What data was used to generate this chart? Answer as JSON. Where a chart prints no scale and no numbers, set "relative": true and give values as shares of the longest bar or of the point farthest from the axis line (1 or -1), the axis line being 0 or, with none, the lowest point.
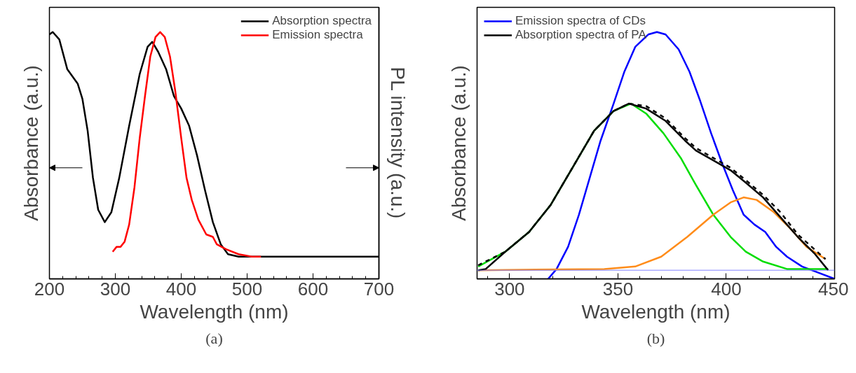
{
  "chart_data": [
    {
      "type": "line",
      "xlabel": "Wavelength (nm)",
      "ylabel": "Absorbance (a.u.)",
      "y2label": "PL intensity (a.u.)",
      "annotations": [
        "(a)"
      ],
      "xlim": [
        200,
        700
      ],
      "xticks": [
        200,
        300,
        400,
        500,
        600,
        700
      ],
      "relative": true,
      "tick_labels": "x",
      "legend": "top right",
      "grid": false,
      "series": [
        {
          "name": "Absorption spectra",
          "color": "#000000",
          "x": [
            200,
            205,
            215,
            227,
            235,
            243,
            250,
            258,
            266,
            274,
            284,
            294,
            306,
            321,
            337,
            349,
            356,
            365,
            377,
            389,
            400,
            412,
            424,
            436,
            448,
            460,
            471,
            487,
            527,
            700
          ],
          "values": [
            0.99,
            1.0,
            0.97,
            0.85,
            0.82,
            0.79,
            0.73,
            0.6,
            0.41,
            0.28,
            0.23,
            0.27,
            0.41,
            0.62,
            0.83,
            0.94,
            0.96,
            0.92,
            0.85,
            0.74,
            0.69,
            0.62,
            0.5,
            0.36,
            0.23,
            0.14,
            0.1,
            0.09,
            0.09,
            0.09
          ]
        },
        {
          "name": "Emission spectra",
          "color": "#ff0000",
          "x": [
            296,
            302,
            308,
            314,
            321,
            329,
            337,
            345,
            353,
            361,
            368,
            375,
            383,
            391,
            400,
            408,
            416,
            426,
            438,
            448,
            454,
            468,
            487,
            507,
            521
          ],
          "values": [
            0.11,
            0.13,
            0.13,
            0.15,
            0.22,
            0.37,
            0.57,
            0.74,
            0.9,
            0.98,
            1.0,
            0.98,
            0.9,
            0.76,
            0.57,
            0.41,
            0.32,
            0.24,
            0.18,
            0.17,
            0.14,
            0.12,
            0.1,
            0.09,
            0.09
          ]
        }
      ]
    },
    {
      "type": "line",
      "xlabel": "Wavelength (nm)",
      "ylabel": "Absorbance (a.u.)",
      "annotations": [
        "(b)"
      ],
      "xlim": [
        285,
        450
      ],
      "xticks": [
        300,
        350,
        400,
        450
      ],
      "relative": true,
      "tick_labels": "x",
      "legend": "top left",
      "grid": false,
      "ref_lines": [
        {
          "axis": "y",
          "value": 0.035,
          "color": "#8080ff"
        }
      ],
      "series": [
        {
          "name": "Emission spectra of CDs",
          "color": "#0000ff",
          "x": [
            317.8,
            321.7,
            327,
            332,
            337,
            342,
            348,
            353,
            358,
            364,
            368,
            372,
            378,
            383,
            388,
            393,
            398,
            403,
            408,
            413,
            418,
            423,
            428,
            435,
            441,
            450
          ],
          "values": [
            0,
            0.04,
            0.13,
            0.26,
            0.41,
            0.56,
            0.71,
            0.84,
            0.94,
            0.99,
            1.0,
            0.99,
            0.93,
            0.84,
            0.72,
            0.59,
            0.47,
            0.36,
            0.26,
            0.22,
            0.19,
            0.13,
            0.09,
            0.05,
            0.03,
            0
          ]
        },
        {
          "color": "#00dd00",
          "x": [
            285.5,
            298,
            309,
            319,
            329,
            339,
            348,
            356,
            363,
            371,
            379,
            386,
            394,
            402,
            409,
            417,
            428,
            447
          ],
          "values": [
            0.05,
            0.11,
            0.19,
            0.3,
            0.45,
            0.6,
            0.68,
            0.71,
            0.67,
            0.59,
            0.49,
            0.38,
            0.26,
            0.17,
            0.11,
            0.07,
            0.04,
            0.04
          ]
        },
        {
          "color": "#ff8c1a",
          "x": [
            285.5,
            343.7,
            358,
            370,
            382,
            394,
            402,
            408,
            414,
            422,
            430,
            437,
            445.8
          ],
          "values": [
            0.035,
            0.04,
            0.05,
            0.09,
            0.17,
            0.26,
            0.31,
            0.33,
            0.32,
            0.27,
            0.2,
            0.13,
            0.08
          ]
        },
        {
          "color": "#000000",
          "line_style": "dashed",
          "x": [
            285.5,
            298,
            309,
            319,
            329,
            339,
            348,
            355,
            363,
            372,
            381,
            386,
            394,
            402,
            409,
            417,
            425,
            433,
            445.8
          ],
          "values": [
            0.055,
            0.11,
            0.19,
            0.3,
            0.45,
            0.6,
            0.68,
            0.71,
            0.7,
            0.65,
            0.57,
            0.53,
            0.49,
            0.45,
            0.4,
            0.34,
            0.27,
            0.18,
            0.08
          ]
        },
        {
          "name": "Absorption spectra of PA",
          "color": "#000000",
          "x": [
            285.5,
            289,
            298,
            309,
            319,
            329,
            339,
            348,
            355,
            363,
            372,
            381,
            386,
            394,
            402,
            409,
            417,
            425,
            433,
            441,
            447
          ],
          "values": [
            0.035,
            0.04,
            0.11,
            0.19,
            0.3,
            0.45,
            0.6,
            0.68,
            0.71,
            0.69,
            0.64,
            0.56,
            0.52,
            0.48,
            0.44,
            0.39,
            0.33,
            0.25,
            0.17,
            0.1,
            0.035
          ]
        }
      ]
    }
  ]
}
